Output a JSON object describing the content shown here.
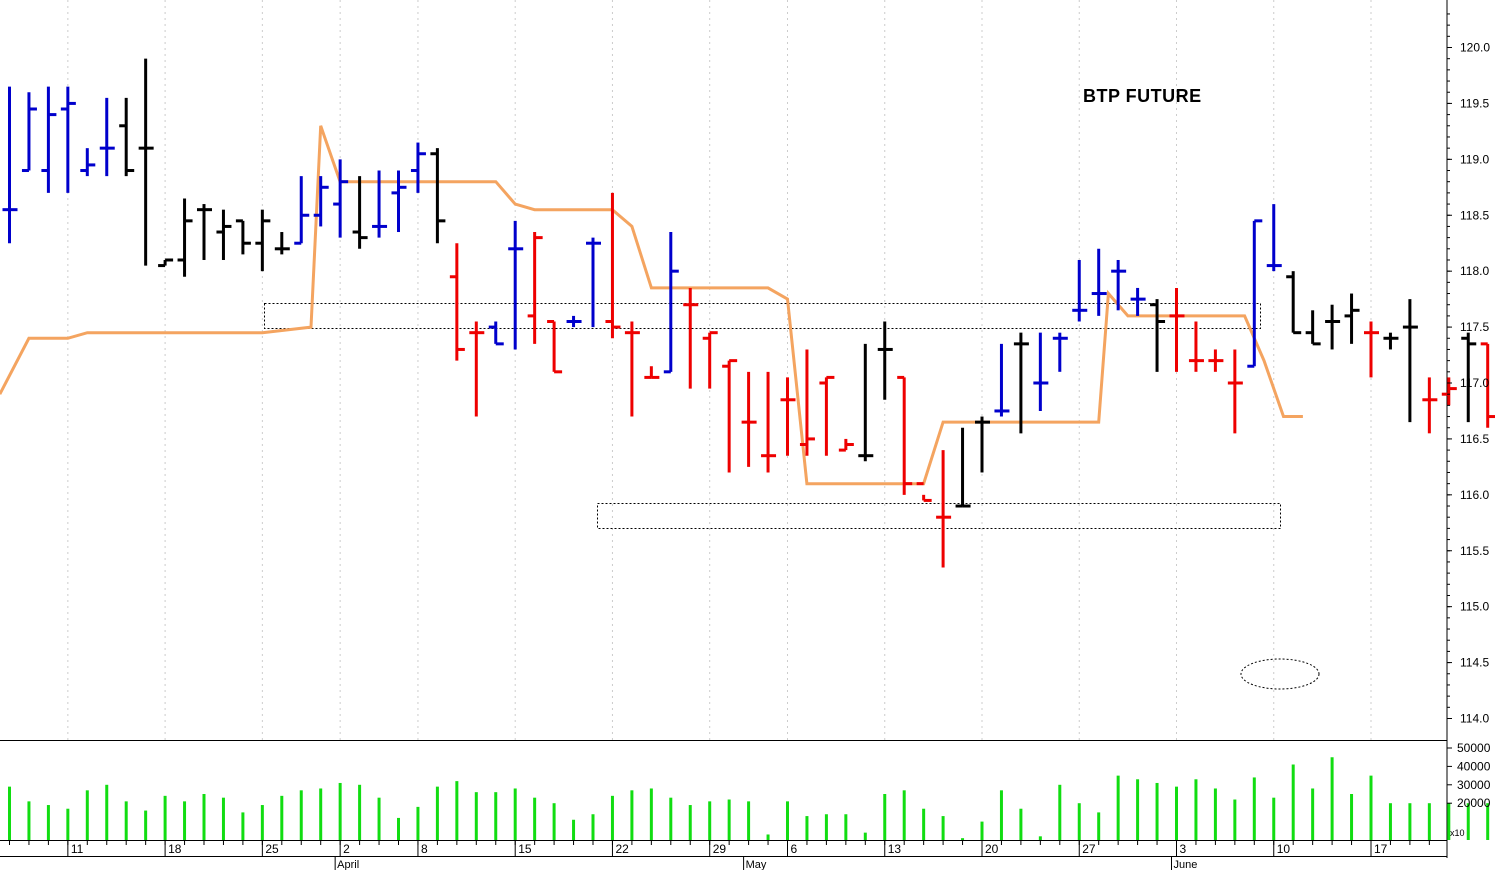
{
  "chart_data": {
    "type": "ohlc",
    "title": "BTP FUTURE",
    "price_axis": {
      "ylim": [
        113.85,
        120.4
      ],
      "ticks": [
        "120.0",
        "119.5",
        "119.0",
        "118.5",
        "118.0",
        "117.5",
        "117.0",
        "116.5",
        "116.0",
        "115.5",
        "115.0",
        "114.5",
        "114.0"
      ]
    },
    "volume_axis": {
      "ylim": [
        0,
        55000
      ],
      "ticks": [
        "50000",
        "40000",
        "30000",
        "20000"
      ],
      "multiplier_label": "x10"
    },
    "x_axis": {
      "day_labels": [
        {
          "bar": 3,
          "label": "11"
        },
        {
          "bar": 8,
          "label": "18"
        },
        {
          "bar": 13,
          "label": "25"
        },
        {
          "bar": 17,
          "label": "2"
        },
        {
          "bar": 21,
          "label": "8"
        },
        {
          "bar": 26,
          "label": "15"
        },
        {
          "bar": 31,
          "label": "22"
        },
        {
          "bar": 36,
          "label": "29"
        },
        {
          "bar": 40,
          "label": "6"
        },
        {
          "bar": 45,
          "label": "13"
        },
        {
          "bar": 50,
          "label": "20"
        },
        {
          "bar": 55,
          "label": "27"
        },
        {
          "bar": 60,
          "label": "3"
        },
        {
          "bar": 65,
          "label": "10"
        },
        {
          "bar": 70,
          "label": "17"
        }
      ],
      "month_labels": [
        {
          "bar": 17,
          "label": "April"
        },
        {
          "bar": 38,
          "label": "May"
        },
        {
          "bar": 60,
          "label": "June"
        }
      ]
    },
    "colors": {
      "up": "#0000cc",
      "neutral": "#000000",
      "down": "#ee0000",
      "stop_line": "#f4a460",
      "volume": "#11dd11",
      "grid": "#cccccc"
    },
    "bars": [
      {
        "o": 118.55,
        "h": 119.2,
        "l": 118.25,
        "c": 118.55,
        "color": "up"
      },
      {
        "o": 118.9,
        "h": 119.65,
        "l": 118.9,
        "c": 119.35,
        "color": "up"
      },
      {
        "o": 118.9,
        "h": 119.6,
        "l": 118.7,
        "c": 119.45,
        "color": "up"
      },
      {
        "o": 119.4,
        "h": 119.65,
        "l": 118.7,
        "c": 119.5,
        "color": "up"
      },
      {
        "o": 118.9,
        "h": 119.0,
        "l": 118.85,
        "c": 118.9,
        "color": "up"
      },
      {
        "o": 118.9,
        "h": 119.5,
        "l": 118.85,
        "c": 119.1,
        "color": "up"
      },
      {
        "o": 119.3,
        "h": 119.55,
        "l": 118.85,
        "c": 118.9,
        "color": "neutral"
      },
      {
        "o": 119.1,
        "h": 119.9,
        "l": 118.05,
        "c": 119.1,
        "color": "neutral"
      },
      {
        "o": 118.1,
        "h": 118.15,
        "l": 118.05,
        "c": 118.05,
        "color": "neutral"
      },
      {
        "o": 118.1,
        "h": 118.65,
        "l": 117.95,
        "c": 118.45,
        "color": "neutral"
      },
      {
        "o": 118.35,
        "h": 118.6,
        "l": 118.1,
        "c": 118.55,
        "color": "neutral"
      },
      {
        "o": 118.4,
        "h": 118.55,
        "l": 118.1,
        "c": 118.35,
        "color": "neutral"
      },
      {
        "o": 118.45,
        "h": 118.45,
        "l": 118.1,
        "c": 118.25,
        "color": "neutral"
      },
      {
        "o": 118.25,
        "h": 118.55,
        "l": 118.0,
        "c": 118.45,
        "color": "neutral"
      },
      {
        "o": 118.2,
        "h": 118.3,
        "l": 118.15,
        "c": 118.2,
        "color": "neutral"
      },
      {
        "o": 118.25,
        "h": 118.85,
        "l": 118.25,
        "c": 118.5,
        "color": "up"
      },
      {
        "o": 118.5,
        "h": 118.85,
        "l": 118.4,
        "c": 118.75,
        "color": "up"
      },
      {
        "o": 118.6,
        "h": 119.0,
        "l": 118.3,
        "c": 118.8,
        "color": "up"
      },
      {
        "o": 118.35,
        "h": 118.85,
        "l": 118.2,
        "c": 118.3,
        "color": "neutral"
      },
      {
        "o": 118.45,
        "h": 118.9,
        "l": 118.3,
        "c": 118.4,
        "color": "up"
      },
      {
        "o": 118.7,
        "h": 118.9,
        "l": 118.35,
        "c": 118.75,
        "color": "up"
      },
      {
        "o": 118.9,
        "h": 119.15,
        "l": 118.7,
        "c": 119.0,
        "color": "up"
      },
      {
        "o": 119.05,
        "h": 119.05,
        "l": 118.25,
        "c": 118.25,
        "color": "neutral"
      }
    ],
    "bars_note": "",
    "ohlc": [
      [
        118.55,
        119.2,
        118.25,
        118.55,
        "up"
      ],
      [
        118.9,
        119.65,
        118.9,
        119.35,
        "up"
      ],
      [
        118.9,
        119.6,
        118.7,
        119.45,
        "up"
      ],
      [
        119.4,
        119.65,
        118.7,
        119.5,
        "up"
      ],
      [
        118.9,
        119.0,
        118.85,
        118.9,
        "up"
      ],
      [
        118.9,
        119.5,
        118.85,
        119.1,
        "up"
      ],
      [
        119.3,
        119.55,
        118.85,
        118.9,
        "neutral"
      ],
      [
        119.1,
        119.9,
        118.05,
        119.1,
        "neutral"
      ],
      [
        118.1,
        118.15,
        118.05,
        118.05,
        "neutral"
      ],
      [
        118.1,
        118.65,
        117.95,
        118.45,
        "neutral"
      ],
      [
        118.35,
        118.6,
        118.1,
        118.55,
        "neutral"
      ],
      [
        118.4,
        118.55,
        118.1,
        118.35,
        "neutral"
      ],
      [
        118.45,
        118.45,
        118.1,
        118.25,
        "neutral"
      ],
      [
        118.25,
        118.55,
        118.0,
        118.45,
        "neutral"
      ],
      [
        118.2,
        118.3,
        118.15,
        118.2,
        "neutral"
      ],
      [
        118.25,
        118.85,
        118.25,
        118.5,
        "up"
      ],
      [
        118.5,
        118.85,
        118.4,
        118.75,
        "up"
      ],
      [
        118.6,
        119.0,
        118.3,
        118.8,
        "up"
      ],
      [
        118.35,
        118.85,
        118.2,
        118.3,
        "neutral"
      ],
      [
        118.45,
        118.9,
        118.3,
        118.4,
        "up"
      ],
      [
        118.7,
        118.9,
        118.35,
        118.75,
        "up"
      ],
      [
        118.9,
        119.15,
        118.7,
        119.0,
        "up"
      ],
      [
        119.05,
        119.05,
        118.25,
        118.25,
        "neutral"
      ]
    ],
    "volume": []
  }
}
